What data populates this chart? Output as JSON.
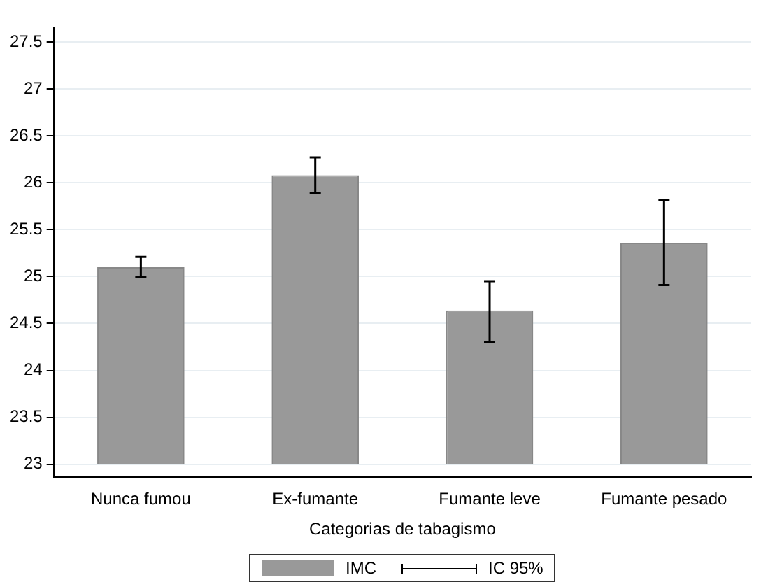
{
  "chart_data": {
    "type": "bar",
    "xlabel": "Categorias de tabagismo",
    "categories": [
      "Nunca fumou",
      "Ex-fumante",
      "Fumante leve",
      "Fumante pesado"
    ],
    "series": [
      {
        "name": "IMC",
        "color": "#999999",
        "base": [
          23,
          23,
          23,
          23
        ],
        "values": [
          2.1,
          3.08,
          1.64,
          2.36
        ],
        "errors": [
          [
            25.0,
            25.21
          ],
          [
            25.89,
            26.27
          ],
          [
            24.3,
            24.95
          ],
          [
            24.91,
            25.82
          ]
        ]
      }
    ],
    "ylim": [
      22.86,
      27.65
    ],
    "yticks": [
      23,
      23.5,
      24,
      24.5,
      25,
      25.5,
      26,
      26.5,
      27,
      27.5
    ],
    "grid": "y",
    "legend": "bottom",
    "annotations": [
      "IC 95%"
    ]
  }
}
